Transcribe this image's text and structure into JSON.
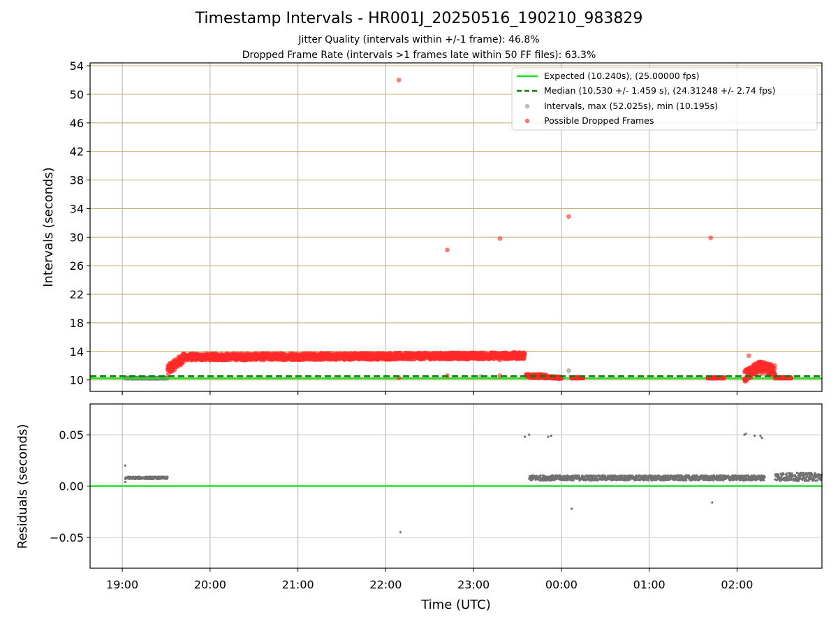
{
  "chart_data": [
    {
      "type": "scatter",
      "title": "Timestamp Intervals - HR001J_20250516_190210_983829",
      "subtitle_1": "Jitter Quality (intervals within +/-1 frame): 46.8%",
      "subtitle_2": "Dropped Frame Rate (intervals >1 frames late within 50 FF files): 63.3%",
      "ylabel": "Intervals (seconds)",
      "ylim": [
        8.4,
        54.4
      ],
      "y_ticks": [
        "10",
        "14",
        "18",
        "22",
        "26",
        "30",
        "34",
        "38",
        "42",
        "46",
        "50",
        "54"
      ],
      "x_ticks": [
        "19:00",
        "20:00",
        "21:00",
        "22:00",
        "23:00",
        "00:00",
        "01:00",
        "02:00"
      ],
      "x_range": [
        "18:38",
        "02:58"
      ],
      "grid": "horizontal lines at y ticks (tan), vertical lines at x ticks (gray)",
      "legend_position": "top-right",
      "expected": {
        "label": "Expected (10.240s), (25.00000 fps)",
        "value": 10.24,
        "color": "#22e01f"
      },
      "median": {
        "label": "Median (10.530 +/- 1.459 s), (24.31248 +/- 2.74 fps)",
        "value": 10.53,
        "color": "#008000"
      },
      "intervals": {
        "label": "Intervals, max (52.025s), min (10.195s)",
        "color": "#808080",
        "points": [
          {
            "x": "23:05",
            "y": 10.5
          },
          {
            "x": "00:05",
            "y": 11.3
          }
        ],
        "bands": [
          {
            "x_start": "19:02",
            "x_end": "19:31",
            "y": 10.25
          }
        ]
      },
      "dropped": {
        "label": "Possible Dropped Frames",
        "color": "#ff2a2a",
        "outliers": [
          {
            "x": "22:09",
            "y": 52.0
          },
          {
            "x": "22:42",
            "y": 28.2
          },
          {
            "x": "23:18",
            "y": 29.8
          },
          {
            "x": "00:05",
            "y": 32.9
          },
          {
            "x": "01:42",
            "y": 29.9
          },
          {
            "x": "02:08",
            "y": 13.4
          },
          {
            "x": "22:42",
            "y": 10.6
          },
          {
            "x": "23:18",
            "y": 10.6
          },
          {
            "x": "22:09",
            "y": 10.3
          },
          {
            "x": "23:18",
            "y": 12.8
          }
        ],
        "bands": [
          {
            "x_start": "19:31",
            "x_end": "19:42",
            "y_from": 11.4,
            "y_to": 13.1,
            "spread": 0.7
          },
          {
            "x_start": "19:42",
            "x_end": "23:35",
            "y_from": 13.2,
            "y_to": 13.4,
            "spread": 0.45
          },
          {
            "x_start": "23:36",
            "x_end": "23:50",
            "y_from": 10.6,
            "y_to": 10.5,
            "spread": 0.25
          },
          {
            "x_start": "23:50",
            "x_end": "00:00",
            "y_from": 10.4,
            "y_to": 10.3,
            "spread": 0.12
          },
          {
            "x_start": "00:07",
            "x_end": "00:15",
            "y_from": 10.3,
            "y_to": 10.3,
            "spread": 0.05
          },
          {
            "x_start": "01:40",
            "x_end": "01:51",
            "y_from": 10.3,
            "y_to": 10.3,
            "spread": 0.05
          },
          {
            "x_start": "02:05",
            "x_end": "02:15",
            "y_from": 10.5,
            "y_to": 11.8,
            "spread": 0.8
          },
          {
            "x_start": "02:15",
            "x_end": "02:26",
            "y_from": 11.8,
            "y_to": 11.3,
            "spread": 0.8
          },
          {
            "x_start": "02:26",
            "x_end": "02:37",
            "y_from": 10.3,
            "y_to": 10.3,
            "spread": 0.06
          }
        ]
      }
    },
    {
      "type": "scatter",
      "ylabel": "Residuals (seconds)",
      "xlabel": "Time (UTC)",
      "ylim": [
        -0.08,
        0.08
      ],
      "y_ticks": [
        "0.05",
        "0.00",
        "−0.05"
      ],
      "y_tick_values": [
        0.05,
        0.0,
        -0.05
      ],
      "x_ticks": [
        "19:00",
        "20:00",
        "21:00",
        "22:00",
        "23:00",
        "00:00",
        "01:00",
        "02:00"
      ],
      "grid": "both axes (gray)",
      "zero_line_color": "#22e01f",
      "residual_color": "#707070",
      "points": [
        {
          "x": "19:02",
          "y": 0.02
        },
        {
          "x": "19:02",
          "y": 0.004
        },
        {
          "x": "22:10",
          "y": -0.045
        },
        {
          "x": "23:35",
          "y": 0.048
        },
        {
          "x": "23:38",
          "y": 0.05
        },
        {
          "x": "23:51",
          "y": 0.048
        },
        {
          "x": "23:53",
          "y": 0.049
        },
        {
          "x": "00:07",
          "y": -0.022
        },
        {
          "x": "01:43",
          "y": -0.016
        },
        {
          "x": "02:05",
          "y": 0.05
        },
        {
          "x": "02:06",
          "y": 0.051
        },
        {
          "x": "02:12",
          "y": 0.049
        },
        {
          "x": "02:16",
          "y": 0.049
        },
        {
          "x": "02:17",
          "y": 0.047
        }
      ],
      "bands": [
        {
          "x_start": "19:02",
          "x_end": "19:31",
          "y": 0.008,
          "spread": 0.0012
        },
        {
          "x_start": "23:38",
          "x_end": "02:19",
          "y": 0.008,
          "spread": 0.0025
        },
        {
          "x_start": "02:26",
          "x_end": "02:58",
          "y": 0.009,
          "spread": 0.004
        }
      ]
    }
  ]
}
